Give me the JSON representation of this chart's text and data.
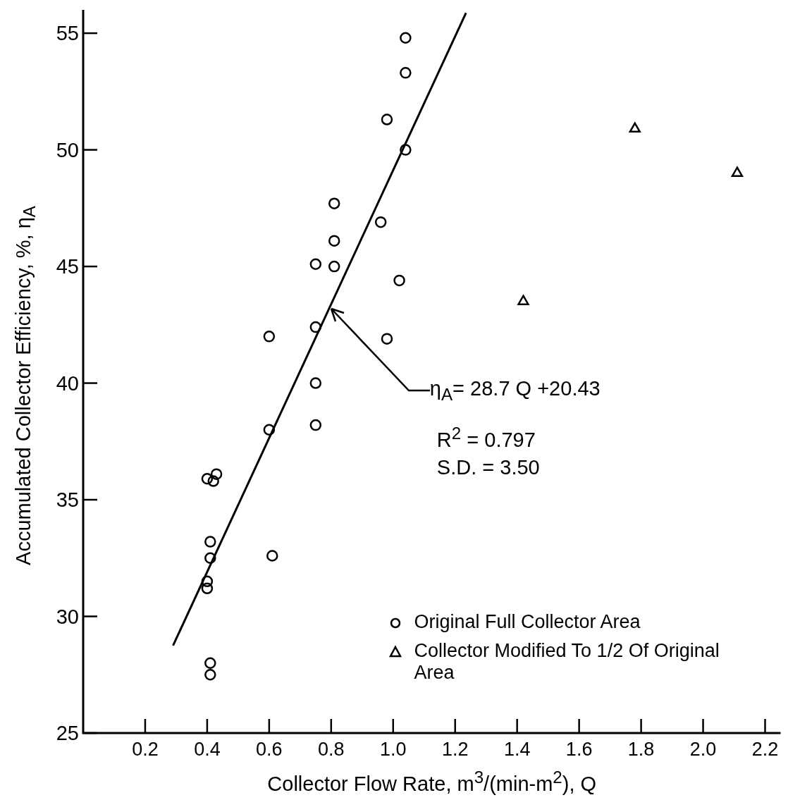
{
  "chart_data": {
    "type": "scatter",
    "xlabel": "Collector Flow Rate, m$^{3}$/(min-m$^{2}$), Q",
    "ylabel": "Accumulated Collector Efficiency, %, η$_{A}$",
    "xlim": [
      0,
      2.25
    ],
    "ylim": [
      25,
      56
    ],
    "xticks": [
      0.2,
      0.4,
      0.6,
      0.8,
      {
        "value": 1,
        "label": "1.0"
      },
      1.2,
      1.4,
      1.6,
      1.8,
      {
        "value": 2,
        "label": "2.0"
      },
      2.2
    ],
    "yticks": [
      25,
      30,
      35,
      40,
      45,
      50,
      55
    ],
    "grid": false,
    "legend": "bottom right",
    "series": [
      {
        "name": "Original Full Collector Area",
        "color": "#000000",
        "marker": "circle",
        "x": [
          1.04,
          1.04,
          0.98,
          1.04,
          0.96,
          0.81,
          0.81,
          0.75,
          0.81,
          1.02,
          0.75,
          0.6,
          0.98,
          0.75,
          0.75,
          0.6,
          0.4,
          0.43,
          0.42,
          0.61,
          0.41,
          0.41,
          0.4,
          0.4,
          0.41,
          0.41
        ],
        "values": [
          54.8,
          53.3,
          51.3,
          50.0,
          46.9,
          47.7,
          46.1,
          45.1,
          45.0,
          44.4,
          42.4,
          42.0,
          41.9,
          40.0,
          38.2,
          38.0,
          35.9,
          36.1,
          35.8,
          32.6,
          33.2,
          32.5,
          31.5,
          31.2,
          28.0,
          27.5
        ]
      },
      {
        "name": "Collector Modified To 1/2 Of Original Area",
        "color": "#000000",
        "marker": "triangle",
        "x": [
          1.78,
          2.11,
          1.42
        ],
        "values": [
          50.9,
          49.0,
          43.5
        ]
      },
      {
        "type": "line",
        "color": "#000000",
        "marker": "none",
        "line_style": "solid",
        "x": [
          0.29,
          1.235
        ],
        "values": [
          28.75,
          55.87
        ]
      }
    ],
    "annotations": [
      {
        "text": "η$_{A}$= 28.7 Q +20.43",
        "x": 0.8,
        "y": 43.2
      },
      "R$^{2}$ = 0.797",
      "S.D. = 3.50"
    ]
  }
}
